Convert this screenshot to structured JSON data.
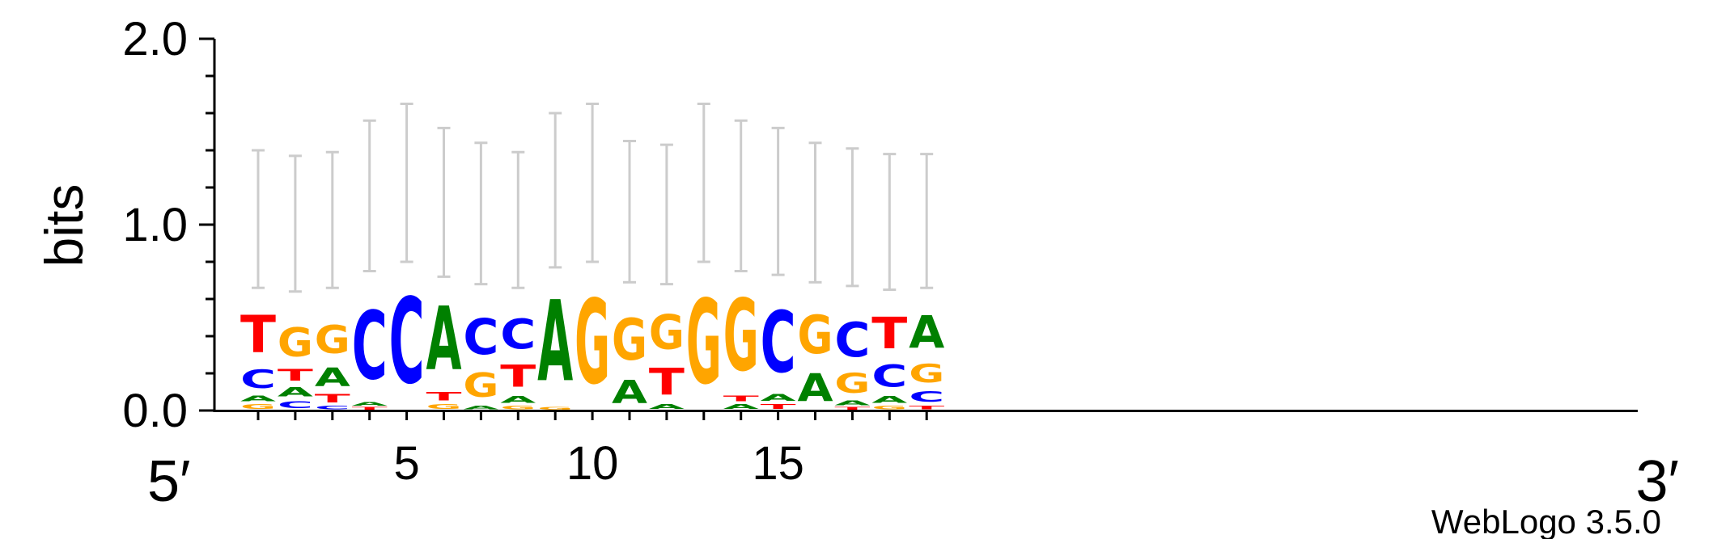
{
  "chart_data": {
    "type": "sequence-logo",
    "ylabel": "bits",
    "ylim": [
      0,
      2.0
    ],
    "yticks": [
      "0.0",
      "1.0",
      "2.0"
    ],
    "xticks": [
      {
        "pos": 5,
        "label": "5"
      },
      {
        "pos": 10,
        "label": "10"
      },
      {
        "pos": 15,
        "label": "15"
      }
    ],
    "end_left": "5′",
    "end_right": "3′",
    "footer": "WebLogo 3.5.0",
    "colors": {
      "A": "#008000",
      "C": "#0000ff",
      "G": "#ffa500",
      "T": "#ff0000",
      "errorbar": "#cccccc"
    },
    "positions": [
      {
        "pos": 1,
        "error": [
          0.66,
          1.4
        ],
        "stack": [
          [
            "G",
            0.04
          ],
          [
            "A",
            0.05
          ],
          [
            "C",
            0.16
          ],
          [
            "T",
            0.32
          ]
        ]
      },
      {
        "pos": 2,
        "error": [
          0.64,
          1.37
        ],
        "stack": [
          [
            "C",
            0.06
          ],
          [
            "A",
            0.08
          ],
          [
            "T",
            0.1
          ],
          [
            "G",
            0.25
          ]
        ]
      },
      {
        "pos": 3,
        "error": [
          0.66,
          1.39
        ],
        "stack": [
          [
            "C",
            0.03
          ],
          [
            "T",
            0.07
          ],
          [
            "A",
            0.16
          ],
          [
            "G",
            0.24
          ]
        ]
      },
      {
        "pos": 4,
        "error": [
          0.75,
          1.56
        ],
        "stack": [
          [
            "T",
            0.02
          ],
          [
            "A",
            0.03
          ],
          [
            "C",
            0.59
          ]
        ]
      },
      {
        "pos": 5,
        "error": [
          0.8,
          1.65
        ],
        "stack": [
          [
            "C",
            0.74
          ]
        ]
      },
      {
        "pos": 6,
        "error": [
          0.72,
          1.52
        ],
        "stack": [
          [
            "G",
            0.04
          ],
          [
            "T",
            0.07
          ],
          [
            "A",
            0.55
          ]
        ]
      },
      {
        "pos": 7,
        "error": [
          0.68,
          1.44
        ],
        "stack": [
          [
            "A",
            0.03
          ],
          [
            "G",
            0.21
          ],
          [
            "C",
            0.31
          ]
        ]
      },
      {
        "pos": 8,
        "error": [
          0.66,
          1.39
        ],
        "stack": [
          [
            "G",
            0.03
          ],
          [
            "A",
            0.06
          ],
          [
            "T",
            0.19
          ],
          [
            "C",
            0.26
          ]
        ]
      },
      {
        "pos": 9,
        "error": [
          0.77,
          1.6
        ],
        "stack": [
          [
            "G",
            0.02
          ],
          [
            "A",
            0.7
          ]
        ]
      },
      {
        "pos": 10,
        "error": [
          0.8,
          1.65
        ],
        "stack": [
          [
            "G",
            0.73
          ]
        ]
      },
      {
        "pos": 11,
        "error": [
          0.69,
          1.45
        ],
        "stack": [
          [
            "A",
            0.2
          ],
          [
            "G",
            0.36
          ]
        ]
      },
      {
        "pos": 12,
        "error": [
          0.68,
          1.43
        ],
        "stack": [
          [
            "A",
            0.04
          ],
          [
            "T",
            0.23
          ],
          [
            "G",
            0.3
          ]
        ]
      },
      {
        "pos": 13,
        "error": [
          0.8,
          1.65
        ],
        "stack": [
          [
            "G",
            0.73
          ]
        ]
      },
      {
        "pos": 14,
        "error": [
          0.75,
          1.56
        ],
        "stack": [
          [
            "A",
            0.04
          ],
          [
            "T",
            0.05
          ],
          [
            "G",
            0.62
          ]
        ]
      },
      {
        "pos": 15,
        "error": [
          0.73,
          1.52
        ],
        "stack": [
          [
            "T",
            0.04
          ],
          [
            "A",
            0.06
          ],
          [
            "C",
            0.53
          ]
        ]
      },
      {
        "pos": 16,
        "error": [
          0.69,
          1.44
        ],
        "stack": [
          [
            "A",
            0.24
          ],
          [
            "G",
            0.33
          ]
        ]
      },
      {
        "pos": 17,
        "error": [
          0.67,
          1.41
        ],
        "stack": [
          [
            "T",
            0.02
          ],
          [
            "A",
            0.04
          ],
          [
            "G",
            0.17
          ],
          [
            "C",
            0.3
          ]
        ]
      },
      {
        "pos": 18,
        "error": [
          0.65,
          1.38
        ],
        "stack": [
          [
            "G",
            0.03
          ],
          [
            "A",
            0.06
          ],
          [
            "C",
            0.19
          ],
          [
            "T",
            0.27
          ]
        ]
      },
      {
        "pos": 19,
        "error": [
          0.66,
          1.38
        ],
        "stack": [
          [
            "T",
            0.03
          ],
          [
            "C",
            0.09
          ],
          [
            "G",
            0.16
          ],
          [
            "A",
            0.28
          ]
        ]
      }
    ]
  }
}
